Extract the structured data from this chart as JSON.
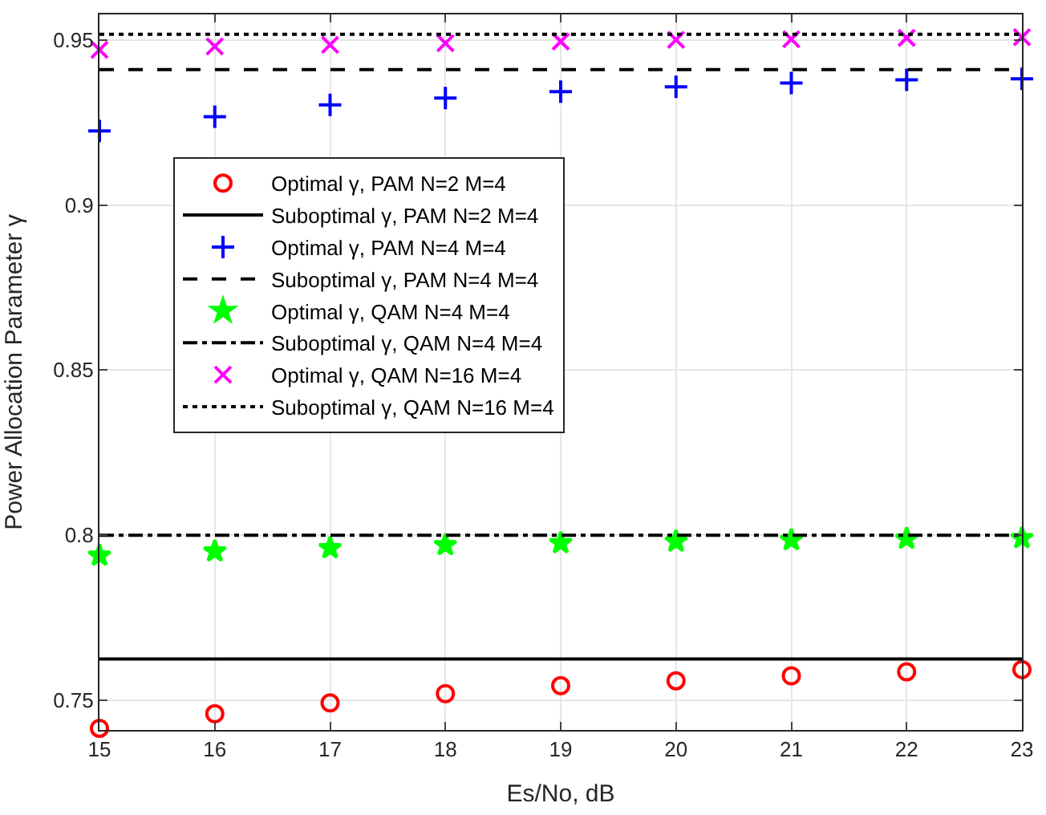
{
  "chart_data": {
    "type": "scatter",
    "xlabel": "Es/No, dB",
    "ylabel": "Power Allocation Parameter γ",
    "x": [
      15,
      16,
      17,
      18,
      19,
      20,
      21,
      22,
      23
    ],
    "xlim": [
      15,
      23
    ],
    "xticks": [
      15,
      16,
      17,
      18,
      19,
      20,
      21,
      22,
      23
    ],
    "ylim": [
      0.741,
      0.9577
    ],
    "yticks": [
      0.75,
      0.8,
      0.85,
      0.9,
      0.95
    ],
    "grid": true,
    "legend": "top left",
    "series": [
      {
        "name": "Optimal γ, PAM N=2 M=4",
        "marker": "circle",
        "color": "#ff0000",
        "values": [
          0.7415,
          0.7459,
          0.7492,
          0.752,
          0.7544,
          0.7559,
          0.7574,
          0.7586,
          0.7593
        ]
      },
      {
        "name": "Suboptimal γ, PAM N=2 M=4",
        "type": "line",
        "marker": "none",
        "line_style": "solid",
        "color": "#000000",
        "values": [
          0.7625,
          0.7625,
          0.7625,
          0.7625,
          0.7625,
          0.7625,
          0.7625,
          0.7625,
          0.7625
        ]
      },
      {
        "name": "Optimal γ, PAM N=4 M=4",
        "marker": "cross",
        "color": "#0000ff",
        "values": [
          0.9224,
          0.9267,
          0.9303,
          0.9324,
          0.9343,
          0.9358,
          0.9369,
          0.9379,
          0.9382
        ]
      },
      {
        "name": "Suboptimal γ, PAM N=4 M=4",
        "type": "line",
        "marker": "none",
        "line_style": "dashed",
        "color": "#000000",
        "values": [
          0.941,
          0.941,
          0.941,
          0.941,
          0.941,
          0.941,
          0.941,
          0.941,
          0.941
        ]
      },
      {
        "name": "Optimal γ, QAM N=4 M=4",
        "marker": "star",
        "color": "#00ff00",
        "values": [
          0.7938,
          0.7951,
          0.7961,
          0.797,
          0.7976,
          0.7981,
          0.7985,
          0.7989,
          0.7991
        ]
      },
      {
        "name": "Suboptimal γ, QAM N=4 M=4",
        "type": "line",
        "marker": "none",
        "line_style": "dashdot",
        "color": "#000000",
        "values": [
          0.8,
          0.8,
          0.8,
          0.8,
          0.8,
          0.8,
          0.8,
          0.8,
          0.8
        ]
      },
      {
        "name": "Optimal γ, QAM N=16 M=4",
        "marker": "x",
        "color": "#ff00ff",
        "values": [
          0.947,
          0.948,
          0.9485,
          0.949,
          0.9495,
          0.95,
          0.9502,
          0.9506,
          0.9508
        ]
      },
      {
        "name": "Suboptimal γ, QAM N=16 M=4",
        "type": "line",
        "marker": "none",
        "line_style": "dotted",
        "color": "#000000",
        "values": [
          0.9517,
          0.9517,
          0.9517,
          0.9517,
          0.9517,
          0.9517,
          0.9517,
          0.9517,
          0.9517
        ]
      }
    ]
  }
}
